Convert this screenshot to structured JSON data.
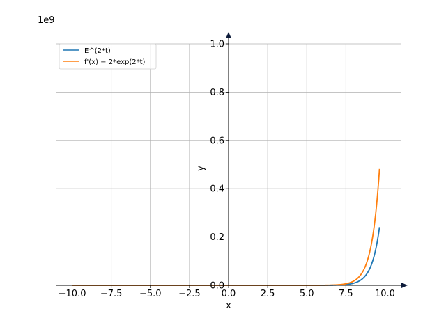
{
  "chart_data": {
    "type": "line",
    "title": "",
    "xlabel": "x",
    "ylabel": "y",
    "y_scale_label": "1e9",
    "xlim": [
      -11.05,
      11.05
    ],
    "ylim": [
      0,
      1.0
    ],
    "x_domain": [
      -10.0,
      9.65
    ],
    "x_ticks": [
      -10.0,
      -7.5,
      -5.0,
      -2.5,
      0.0,
      2.5,
      5.0,
      7.5,
      10.0
    ],
    "x_tick_labels": [
      "−10.0",
      "−7.5",
      "−5.0",
      "−2.5",
      "0.0",
      "2.5",
      "5.0",
      "7.5",
      "10.0"
    ],
    "y_ticks": [
      0.0,
      0.2,
      0.4,
      0.6,
      0.8,
      1.0
    ],
    "y_tick_labels": [
      "0.0",
      "0.2",
      "0.4",
      "0.6",
      "0.8",
      "1.0"
    ],
    "grid": true,
    "legend_position": "top-left",
    "series": [
      {
        "name": "E^(2*t)",
        "color": "#1f77b4",
        "multiplier": 1
      },
      {
        "name": "f'(x) = 2*exp(2*t)",
        "color": "#ff7f0e",
        "multiplier": 2
      }
    ]
  }
}
